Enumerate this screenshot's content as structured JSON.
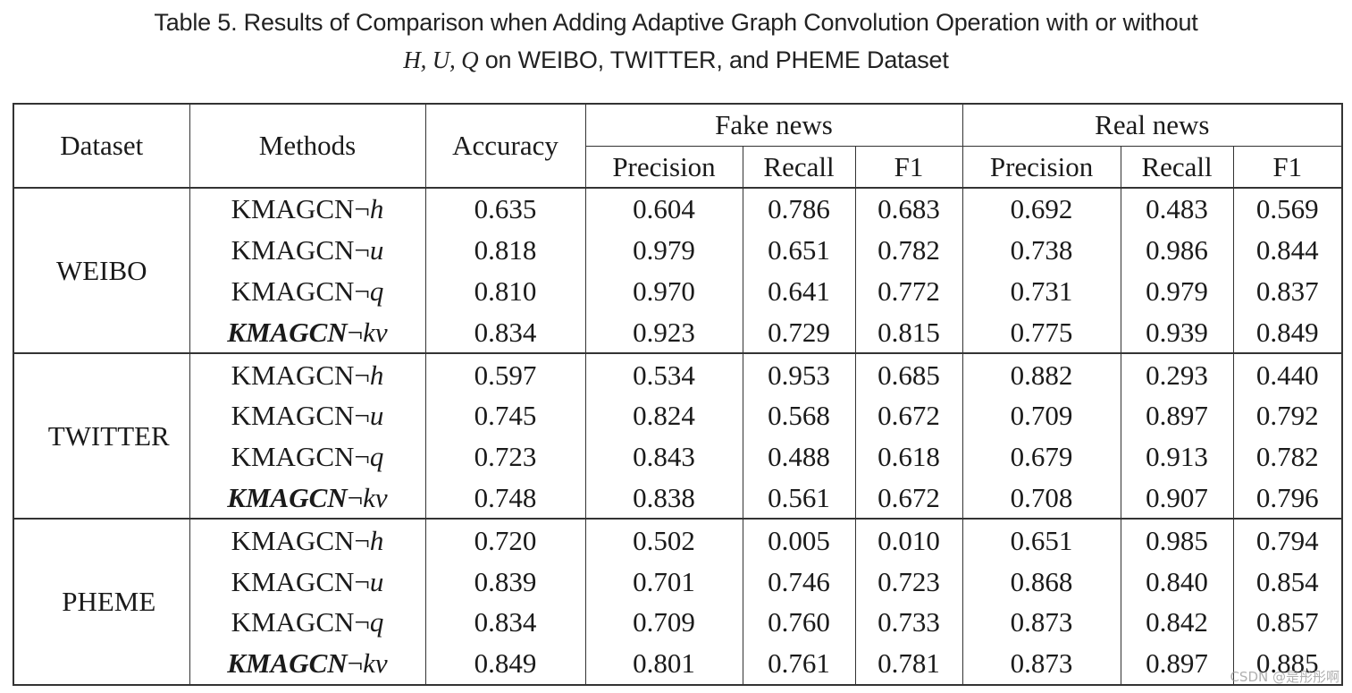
{
  "caption": {
    "line1": "Table 5.  Results of Comparison when Adding Adaptive Graph Convolution Operation with or without",
    "line2_vars": "H, U, Q",
    "line2_rest": " on WEIBO, TWITTER, and PHEME Dataset"
  },
  "table": {
    "headers": {
      "dataset": "Dataset",
      "methods": "Methods",
      "accuracy": "Accuracy",
      "fake_group": "Fake news",
      "real_group": "Real news",
      "fake_precision": "Precision",
      "fake_recall": "Recall",
      "fake_f1": "F1",
      "real_precision": "Precision",
      "real_recall": "Recall",
      "real_f1": "F1"
    },
    "negation_symbol": "¬",
    "groups": [
      {
        "dataset": "WEIBO",
        "rows": [
          {
            "method": "KMAGCN",
            "variant": "h",
            "accuracy": "0.635",
            "fake_precision": "0.604",
            "fake_recall": "0.786",
            "fake_f1": "0.683",
            "real_precision": "0.692",
            "real_recall": "0.483",
            "real_f1": "0.569"
          },
          {
            "method": "KMAGCN",
            "variant": "u",
            "accuracy": "0.818",
            "fake_precision": "0.979",
            "fake_recall": "0.651",
            "fake_f1": "0.782",
            "real_precision": "0.738",
            "real_recall": "0.986",
            "real_f1": "0.844"
          },
          {
            "method": "KMAGCN",
            "variant": "q",
            "accuracy": "0.810",
            "fake_precision": "0.970",
            "fake_recall": "0.641",
            "fake_f1": "0.772",
            "real_precision": "0.731",
            "real_recall": "0.979",
            "real_f1": "0.837"
          },
          {
            "method": "KMAGCN",
            "variant": "kv",
            "accuracy": "0.834",
            "fake_precision": "0.923",
            "fake_recall": "0.729",
            "fake_f1": "0.815",
            "real_precision": "0.775",
            "real_recall": "0.939",
            "real_f1": "0.849"
          }
        ]
      },
      {
        "dataset": "TWITTER",
        "rows": [
          {
            "method": "KMAGCN",
            "variant": "h",
            "accuracy": "0.597",
            "fake_precision": "0.534",
            "fake_recall": "0.953",
            "fake_f1": "0.685",
            "real_precision": "0.882",
            "real_recall": "0.293",
            "real_f1": "0.440"
          },
          {
            "method": "KMAGCN",
            "variant": "u",
            "accuracy": "0.745",
            "fake_precision": "0.824",
            "fake_recall": "0.568",
            "fake_f1": "0.672",
            "real_precision": "0.709",
            "real_recall": "0.897",
            "real_f1": "0.792"
          },
          {
            "method": "KMAGCN",
            "variant": "q",
            "accuracy": "0.723",
            "fake_precision": "0.843",
            "fake_recall": "0.488",
            "fake_f1": "0.618",
            "real_precision": "0.679",
            "real_recall": "0.913",
            "real_f1": "0.782"
          },
          {
            "method": "KMAGCN",
            "variant": "kv",
            "accuracy": "0.748",
            "fake_precision": "0.838",
            "fake_recall": "0.561",
            "fake_f1": "0.672",
            "real_precision": "0.708",
            "real_recall": "0.907",
            "real_f1": "0.796"
          }
        ]
      },
      {
        "dataset": "PHEME",
        "rows": [
          {
            "method": "KMAGCN",
            "variant": "h",
            "accuracy": "0.720",
            "fake_precision": "0.502",
            "fake_recall": "0.005",
            "fake_f1": "0.010",
            "real_precision": "0.651",
            "real_recall": "0.985",
            "real_f1": "0.794"
          },
          {
            "method": "KMAGCN",
            "variant": "u",
            "accuracy": "0.839",
            "fake_precision": "0.701",
            "fake_recall": "0.746",
            "fake_f1": "0.723",
            "real_precision": "0.868",
            "real_recall": "0.840",
            "real_f1": "0.854"
          },
          {
            "method": "KMAGCN",
            "variant": "q",
            "accuracy": "0.834",
            "fake_precision": "0.709",
            "fake_recall": "0.760",
            "fake_f1": "0.733",
            "real_precision": "0.873",
            "real_recall": "0.842",
            "real_f1": "0.857"
          },
          {
            "method": "KMAGCN",
            "variant": "kv",
            "accuracy": "0.849",
            "fake_precision": "0.801",
            "fake_recall": "0.761",
            "fake_f1": "0.781",
            "real_precision": "0.873",
            "real_recall": "0.897",
            "real_f1": "0.885"
          }
        ]
      }
    ]
  },
  "watermark": "CSDN @是彤彤啊"
}
